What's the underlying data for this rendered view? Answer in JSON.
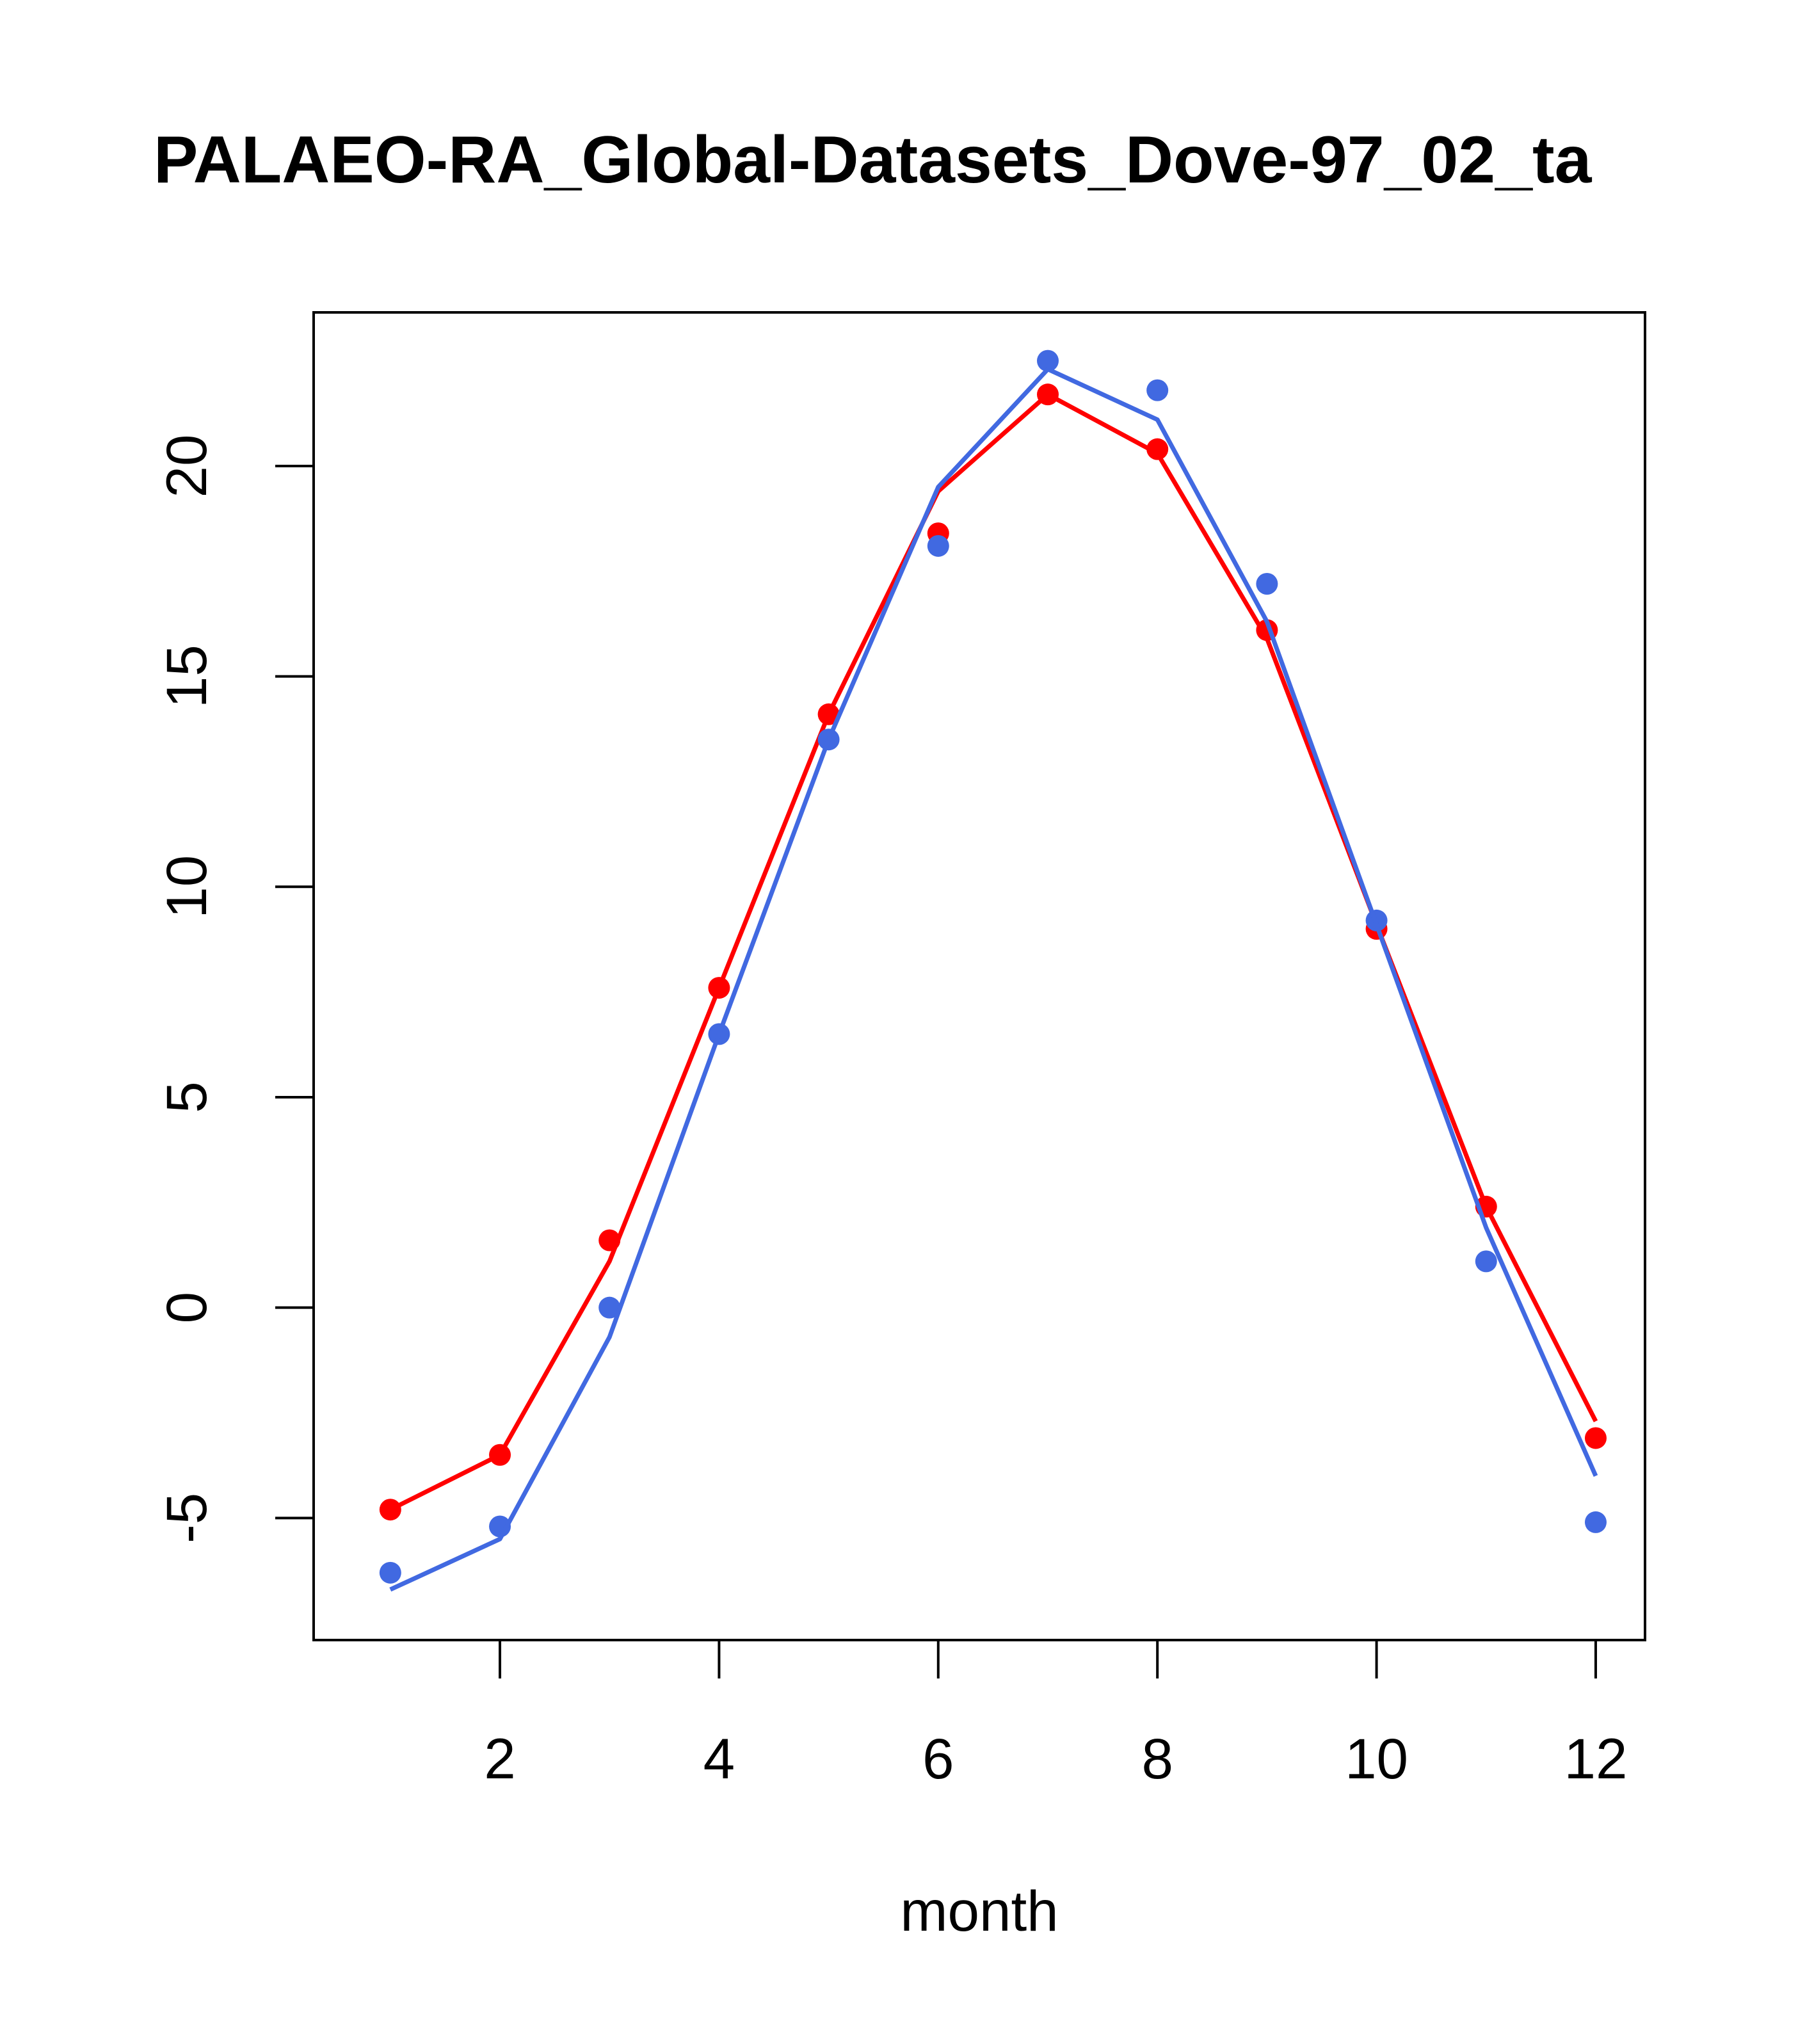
{
  "chart_data": {
    "type": "line",
    "title": "PALAEO-RA_Global-Datasets_Dove-97_02_ta",
    "xlabel": "month",
    "ylabel": "",
    "xlim": [
      0.3,
      12.45
    ],
    "ylim": [
      -7.9,
      23.65
    ],
    "x_ticks": [
      2,
      4,
      6,
      8,
      10,
      12
    ],
    "y_ticks": [
      -5,
      0,
      5,
      10,
      15,
      20
    ],
    "x_tick_labels": [
      "2",
      "4",
      "6",
      "8",
      "10",
      "12"
    ],
    "y_tick_labels": [
      "-5",
      "0",
      "5",
      "10",
      "15",
      "20"
    ],
    "grid": false,
    "legend": false,
    "series": [
      {
        "color": "#FF0000",
        "x": [
          1,
          2,
          3,
          4,
          5,
          6,
          7,
          8,
          9,
          10,
          11,
          12
        ],
        "points": [
          -4.8,
          -3.5,
          1.6,
          7.6,
          14.1,
          18.4,
          21.7,
          20.4,
          16.1,
          9.0,
          2.4,
          -3.1
        ],
        "line": [
          -4.8,
          -3.5,
          1.1,
          7.6,
          14.1,
          19.4,
          21.7,
          20.3,
          15.9,
          9.1,
          2.4,
          -2.7
        ]
      },
      {
        "color": "#4169E1",
        "x": [
          1,
          2,
          3,
          4,
          5,
          6,
          7,
          8,
          9,
          10,
          11,
          12
        ],
        "points": [
          -6.3,
          -5.2,
          0.0,
          6.5,
          13.5,
          18.1,
          22.5,
          21.8,
          17.2,
          9.2,
          1.1,
          -5.1
        ],
        "line": [
          -6.7,
          -5.5,
          -0.7,
          6.5,
          13.5,
          19.5,
          22.3,
          21.1,
          16.3,
          9.1,
          1.9,
          -4.0
        ]
      }
    ]
  }
}
